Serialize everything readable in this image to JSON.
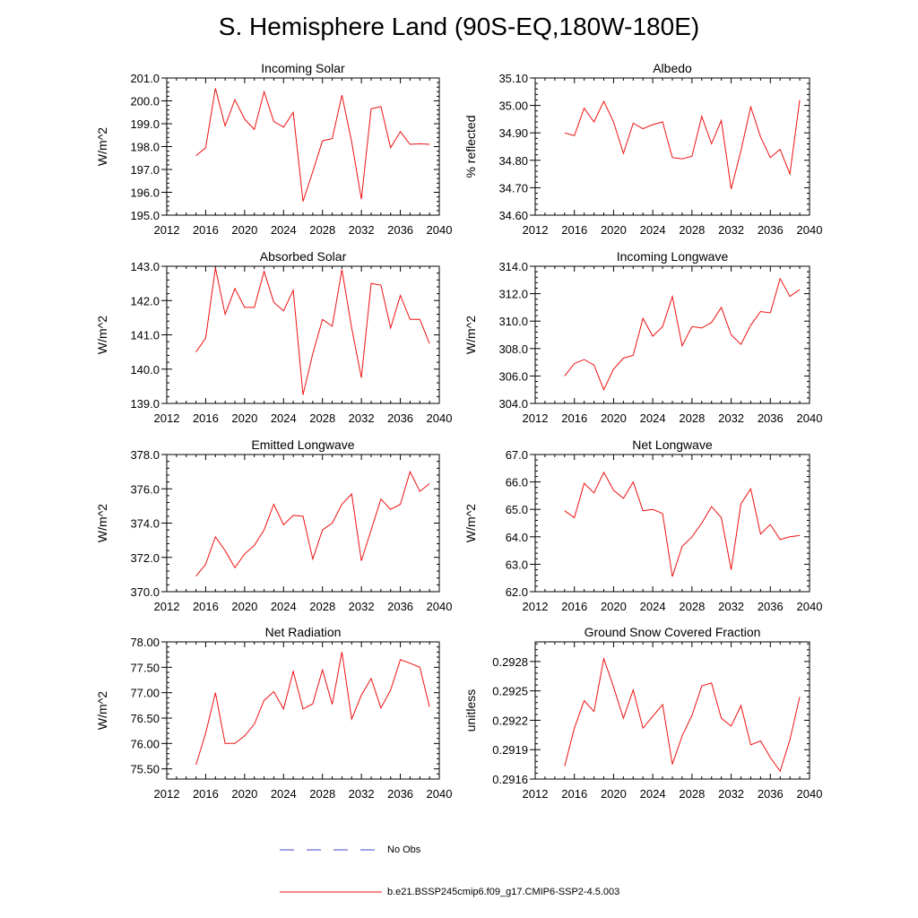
{
  "page_title": "S. Hemisphere Land (90S-EQ,180W-180E)",
  "legend": {
    "obs_label": "No Obs",
    "obs_color": "#4444cc",
    "model_label": "b.e21.BSSP245cmip6.f09_g17.CMIP6-SSP2-4.5.003",
    "model_color": "#ee1111"
  },
  "chart_data": [
    {
      "type": "line",
      "title": "Incoming Solar",
      "ylabel": "W/m^2",
      "xlim": [
        2012,
        2040
      ],
      "xticks": [
        2012,
        2016,
        2020,
        2024,
        2028,
        2032,
        2036,
        2040
      ],
      "ylim": [
        195.0,
        201.0
      ],
      "yticks": [
        195.0,
        196.0,
        197.0,
        198.0,
        199.0,
        200.0,
        201.0
      ],
      "ydecimals": 1,
      "x": [
        2015,
        2016,
        2017,
        2018,
        2019,
        2020,
        2021,
        2022,
        2023,
        2024,
        2025,
        2026,
        2027,
        2028,
        2029,
        2030,
        2031,
        2032,
        2033,
        2034,
        2035,
        2036,
        2037,
        2038,
        2039
      ],
      "values": [
        197.6,
        197.95,
        200.55,
        198.9,
        200.05,
        199.2,
        198.75,
        200.4,
        199.1,
        198.85,
        199.5,
        195.6,
        196.9,
        198.25,
        198.35,
        200.25,
        198.2,
        195.7,
        199.65,
        199.75,
        197.95,
        198.65,
        198.1,
        198.12,
        198.1
      ]
    },
    {
      "type": "line",
      "title": "Albedo",
      "ylabel": "% reflected",
      "xlim": [
        2012,
        2040
      ],
      "xticks": [
        2012,
        2016,
        2020,
        2024,
        2028,
        2032,
        2036,
        2040
      ],
      "ylim": [
        34.6,
        35.1
      ],
      "yticks": [
        34.6,
        34.7,
        34.8,
        34.9,
        35.0,
        35.1
      ],
      "ydecimals": 2,
      "x": [
        2015,
        2016,
        2017,
        2018,
        2019,
        2020,
        2021,
        2022,
        2023,
        2024,
        2025,
        2026,
        2027,
        2028,
        2029,
        2030,
        2031,
        2032,
        2033,
        2034,
        2035,
        2036,
        2037,
        2038,
        2039
      ],
      "values": [
        34.9,
        34.89,
        34.99,
        34.94,
        35.015,
        34.94,
        34.825,
        34.935,
        34.915,
        34.93,
        34.94,
        34.81,
        34.805,
        34.815,
        34.96,
        34.86,
        34.945,
        34.695,
        34.835,
        34.995,
        34.885,
        34.81,
        34.84,
        34.75,
        35.02
      ]
    },
    {
      "type": "line",
      "title": "Absorbed Solar",
      "ylabel": "W/m^2",
      "xlim": [
        2012,
        2040
      ],
      "xticks": [
        2012,
        2016,
        2020,
        2024,
        2028,
        2032,
        2036,
        2040
      ],
      "ylim": [
        139.0,
        143.0
      ],
      "yticks": [
        139.0,
        140.0,
        141.0,
        142.0,
        143.0
      ],
      "ydecimals": 1,
      "x": [
        2015,
        2016,
        2017,
        2018,
        2019,
        2020,
        2021,
        2022,
        2023,
        2024,
        2025,
        2026,
        2027,
        2028,
        2029,
        2030,
        2031,
        2032,
        2033,
        2034,
        2035,
        2036,
        2037,
        2038,
        2039
      ],
      "values": [
        140.5,
        140.9,
        142.95,
        141.6,
        142.35,
        141.8,
        141.8,
        142.85,
        141.95,
        141.7,
        142.3,
        139.25,
        140.45,
        141.45,
        141.25,
        142.9,
        141.2,
        139.75,
        142.5,
        142.45,
        141.2,
        142.15,
        141.45,
        141.45,
        140.75
      ]
    },
    {
      "type": "line",
      "title": "Incoming Longwave",
      "ylabel": "W/m^2",
      "xlim": [
        2012,
        2040
      ],
      "xticks": [
        2012,
        2016,
        2020,
        2024,
        2028,
        2032,
        2036,
        2040
      ],
      "ylim": [
        304.0,
        314.0
      ],
      "yticks": [
        304.0,
        306.0,
        308.0,
        310.0,
        312.0,
        314.0
      ],
      "ydecimals": 1,
      "x": [
        2015,
        2016,
        2017,
        2018,
        2019,
        2020,
        2021,
        2022,
        2023,
        2024,
        2025,
        2026,
        2027,
        2028,
        2029,
        2030,
        2031,
        2032,
        2033,
        2034,
        2035,
        2036,
        2037,
        2038,
        2039
      ],
      "values": [
        306.0,
        306.9,
        307.2,
        306.8,
        305.0,
        306.5,
        307.3,
        307.5,
        310.2,
        308.9,
        309.6,
        311.8,
        308.2,
        309.6,
        309.5,
        309.9,
        311.0,
        309.0,
        308.3,
        309.7,
        310.7,
        310.6,
        313.1,
        311.8,
        312.3
      ]
    },
    {
      "type": "line",
      "title": "Emitted Longwave",
      "ylabel": "W/m^2",
      "xlim": [
        2012,
        2040
      ],
      "xticks": [
        2012,
        2016,
        2020,
        2024,
        2028,
        2032,
        2036,
        2040
      ],
      "ylim": [
        370.0,
        378.0
      ],
      "yticks": [
        370.0,
        372.0,
        374.0,
        376.0,
        378.0
      ],
      "ydecimals": 1,
      "x": [
        2015,
        2016,
        2017,
        2018,
        2019,
        2020,
        2021,
        2022,
        2023,
        2024,
        2025,
        2026,
        2027,
        2028,
        2029,
        2030,
        2031,
        2032,
        2033,
        2034,
        2035,
        2036,
        2037,
        2038,
        2039
      ],
      "values": [
        370.9,
        371.6,
        373.2,
        372.4,
        371.4,
        372.2,
        372.7,
        373.6,
        375.1,
        373.9,
        374.45,
        374.4,
        371.9,
        373.6,
        374.0,
        375.1,
        375.7,
        371.8,
        373.6,
        375.4,
        374.8,
        375.1,
        377.0,
        375.85,
        376.3
      ]
    },
    {
      "type": "line",
      "title": "Net Longwave",
      "ylabel": "W/m^2",
      "xlim": [
        2012,
        2040
      ],
      "xticks": [
        2012,
        2016,
        2020,
        2024,
        2028,
        2032,
        2036,
        2040
      ],
      "ylim": [
        62.0,
        67.0
      ],
      "yticks": [
        62.0,
        63.0,
        64.0,
        65.0,
        66.0,
        67.0
      ],
      "ydecimals": 1,
      "x": [
        2015,
        2016,
        2017,
        2018,
        2019,
        2020,
        2021,
        2022,
        2023,
        2024,
        2025,
        2026,
        2027,
        2028,
        2029,
        2030,
        2031,
        2032,
        2033,
        2034,
        2035,
        2036,
        2037,
        2038,
        2039
      ],
      "values": [
        64.95,
        64.7,
        65.95,
        65.6,
        66.35,
        65.7,
        65.4,
        66.0,
        64.95,
        65.0,
        64.85,
        62.55,
        63.65,
        64.0,
        64.5,
        65.1,
        64.7,
        62.8,
        65.2,
        65.75,
        64.1,
        64.45,
        63.9,
        64.0,
        64.05
      ]
    },
    {
      "type": "line",
      "title": "Net Radiation",
      "ylabel": "W/m^2",
      "xlim": [
        2012,
        2040
      ],
      "xticks": [
        2012,
        2016,
        2020,
        2024,
        2028,
        2032,
        2036,
        2040
      ],
      "ylim": [
        75.3,
        78.0
      ],
      "yticks": [
        75.5,
        76.0,
        76.5,
        77.0,
        77.5,
        78.0
      ],
      "ydecimals": 2,
      "x": [
        2015,
        2016,
        2017,
        2018,
        2019,
        2020,
        2021,
        2022,
        2023,
        2024,
        2025,
        2026,
        2027,
        2028,
        2029,
        2030,
        2031,
        2032,
        2033,
        2034,
        2035,
        2036,
        2037,
        2038,
        2039
      ],
      "values": [
        75.58,
        76.2,
        77.0,
        76.0,
        76.0,
        76.15,
        76.38,
        76.85,
        77.02,
        76.68,
        77.42,
        76.68,
        76.78,
        77.45,
        76.77,
        77.8,
        76.48,
        76.95,
        77.28,
        76.7,
        77.05,
        77.65,
        77.58,
        77.5,
        76.72
      ]
    },
    {
      "type": "line",
      "title": "Ground Snow Covered Fraction",
      "ylabel": "unitless",
      "xlim": [
        2012,
        2040
      ],
      "xticks": [
        2012,
        2016,
        2020,
        2024,
        2028,
        2032,
        2036,
        2040
      ],
      "ylim": [
        0.2916,
        0.293
      ],
      "yticks": [
        0.2916,
        0.2919,
        0.2922,
        0.2925,
        0.2928
      ],
      "ydecimals": 4,
      "x": [
        2015,
        2016,
        2017,
        2018,
        2019,
        2020,
        2021,
        2022,
        2023,
        2024,
        2025,
        2026,
        2027,
        2028,
        2029,
        2030,
        2031,
        2032,
        2033,
        2034,
        2035,
        2036,
        2037,
        2038,
        2039
      ],
      "values": [
        0.29173,
        0.29212,
        0.2924,
        0.29229,
        0.29283,
        0.29254,
        0.29222,
        0.29251,
        0.29212,
        0.29224,
        0.29236,
        0.29175,
        0.29204,
        0.29225,
        0.29255,
        0.29258,
        0.29222,
        0.29214,
        0.29235,
        0.29195,
        0.29199,
        0.29182,
        0.29168,
        0.292,
        0.29244
      ]
    }
  ]
}
